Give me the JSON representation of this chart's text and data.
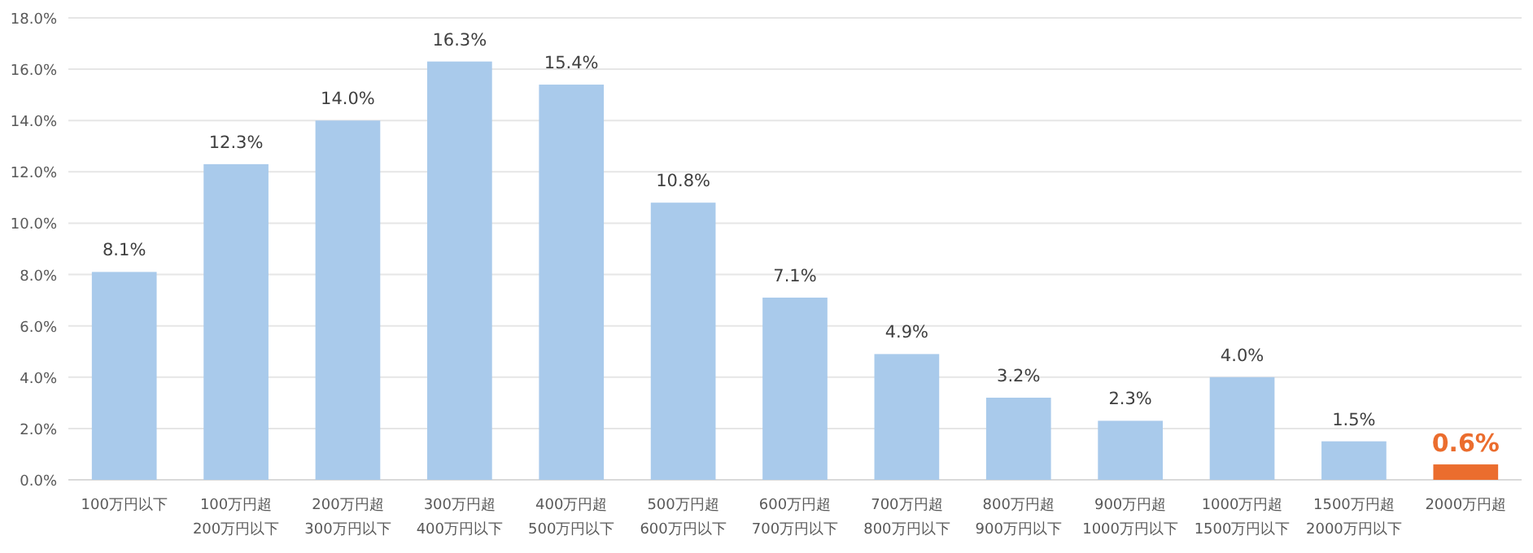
{
  "chart_data": {
    "type": "bar",
    "categories": [
      "100万円以下",
      "100万円超\n200万円以下",
      "200万円超\n300万円以下",
      "300万円超\n400万円以下",
      "400万円超\n500万円以下",
      "500万円超\n600万円以下",
      "600万円超\n700万円以下",
      "700万円超\n800万円以下",
      "800万円超\n900万円以下",
      "900万円超\n1000万円以下",
      "1000万円超\n1500万円以下",
      "1500万円超\n2000万円以下",
      "2000万円超"
    ],
    "values": [
      8.1,
      12.3,
      14.0,
      16.3,
      15.4,
      10.8,
      7.1,
      4.9,
      3.2,
      2.3,
      4.0,
      1.5,
      0.6
    ],
    "value_labels": [
      "8.1%",
      "12.3%",
      "14.0%",
      "16.3%",
      "15.4%",
      "10.8%",
      "7.1%",
      "4.9%",
      "3.2%",
      "2.3%",
      "4.0%",
      "1.5%",
      "0.6%"
    ],
    "color": "#a9caeb",
    "colors": [
      "#a9caeb",
      "#a9caeb",
      "#a9caeb",
      "#a9caeb",
      "#a9caeb",
      "#a9caeb",
      "#a9caeb",
      "#a9caeb",
      "#a9caeb",
      "#a9caeb",
      "#a9caeb",
      "#a9caeb",
      "#eb6d2e"
    ],
    "ylim": [
      0,
      18
    ],
    "yticks": [
      {
        "value": 0,
        "label": "0.0%"
      },
      {
        "value": 2,
        "label": "2.0%"
      },
      {
        "value": 4,
        "label": "4.0%"
      },
      {
        "value": 6,
        "label": "6.0%"
      },
      {
        "value": 8,
        "label": "8.0%"
      },
      {
        "value": 10,
        "label": "10.0%"
      },
      {
        "value": 12,
        "label": "12.0%"
      },
      {
        "value": 14,
        "label": "14.0%"
      },
      {
        "value": 16,
        "label": "16.0%"
      },
      {
        "value": 18,
        "label": "18.0%"
      }
    ],
    "grid": "y"
  }
}
